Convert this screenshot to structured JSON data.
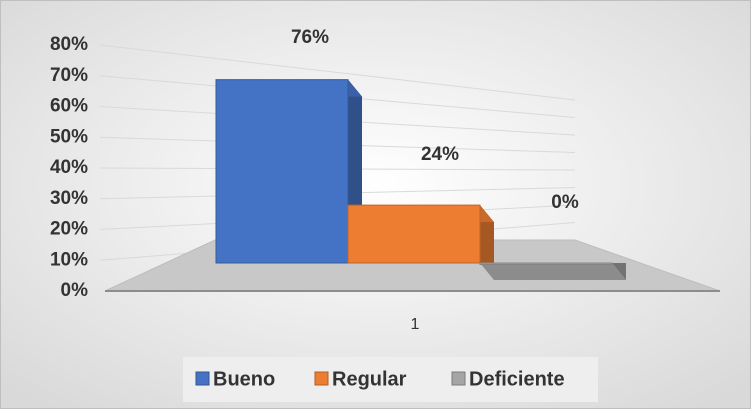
{
  "chart_data": {
    "type": "bar3d",
    "categories": [
      "1"
    ],
    "series": [
      {
        "name": "Bueno",
        "color": "#4472c4",
        "values": [
          76
        ],
        "value_labels": [
          "76%"
        ]
      },
      {
        "name": "Regular",
        "color": "#ed7d31",
        "values": [
          24
        ],
        "value_labels": [
          "24%"
        ]
      },
      {
        "name": "Deficiente",
        "color": "#a5a5a5",
        "values": [
          0
        ],
        "value_labels": [
          "0%"
        ]
      }
    ],
    "ylim": [
      0,
      80
    ],
    "yticks": [
      {
        "value": 0,
        "label": "0%"
      },
      {
        "value": 10,
        "label": "10%"
      },
      {
        "value": 20,
        "label": "20%"
      },
      {
        "value": 30,
        "label": "30%"
      },
      {
        "value": 40,
        "label": "40%"
      },
      {
        "value": 50,
        "label": "50%"
      },
      {
        "value": 60,
        "label": "60%"
      },
      {
        "value": 70,
        "label": "70%"
      },
      {
        "value": 80,
        "label": "80%"
      }
    ],
    "grid": true,
    "legend": "bottom"
  }
}
